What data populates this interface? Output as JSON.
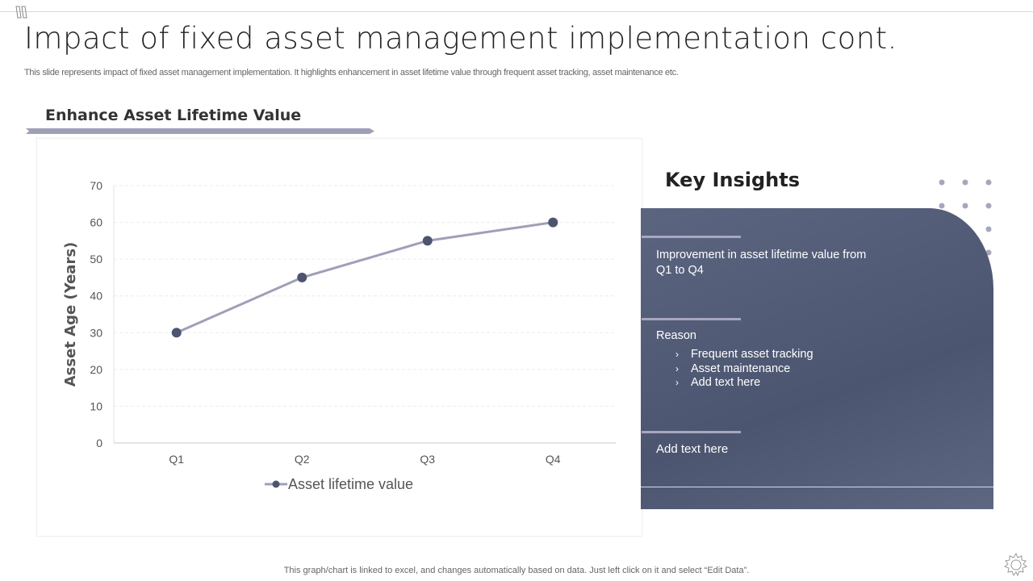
{
  "slide": {
    "title": "Impact of fixed asset management implementation cont.",
    "subtitle": "This slide represents impact of fixed  asset management implementation. It highlights enhancement in asset lifetime value through frequent asset tracking, asset maintenance etc.",
    "section_heading": "Enhance Asset Lifetime Value",
    "footer": "This graph/chart is linked to excel,  and changes automatically based on data. Just left click on it and select “Edit Data”."
  },
  "insights": {
    "title": "Key Insights",
    "item1": "Improvement  in asset lifetime value from Q1 to Q4",
    "reason_label": "Reason",
    "reasons": [
      "Frequent asset tracking",
      "Asset maintenance",
      "Add text here"
    ],
    "item3": "Add text here"
  },
  "colors": {
    "line": "#a09fb8",
    "marker": "#4d5470",
    "panel": "#545d78",
    "arrow": "#a09fb8"
  },
  "chart_data": {
    "type": "line",
    "categories": [
      "Q1",
      "Q2",
      "Q3",
      "Q4"
    ],
    "series": [
      {
        "name": "Asset lifetime value",
        "values": [
          30,
          45,
          55,
          60
        ]
      }
    ],
    "xlabel": "",
    "ylabel": "Asset Age (Years)",
    "ylim": [
      0,
      70
    ],
    "yticks": [
      "0",
      "10",
      "20",
      "30",
      "40",
      "50",
      "60",
      "70"
    ],
    "grid": true,
    "legend": "bottom"
  }
}
